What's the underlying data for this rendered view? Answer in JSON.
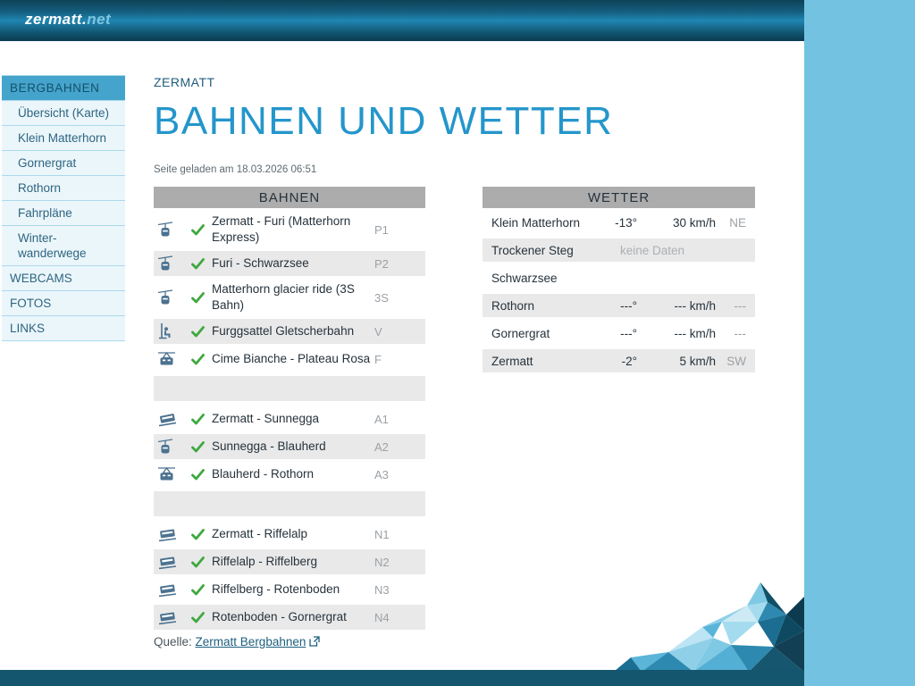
{
  "brand": {
    "logo_main": "zermatt.",
    "logo_suffix": "net"
  },
  "colors": {
    "accent_heading": "#2496cb",
    "header_gradient_top": "#0d4156",
    "header_gradient_mid": "#1f86b2",
    "header_gradient_bottom": "#0a3c50",
    "right_panel": "#74c2e1",
    "bottom_bar": "#14566e",
    "nav_active_bg": "#45a4cb",
    "nav_bg": "#ebf6fb",
    "nav_border": "#a9d9ec",
    "table_header_bg": "#acacac",
    "row_alt_gray": "#e9e9e9",
    "status_open_green": "#3ea83e",
    "lift_icon_color": "#4c7290",
    "muted_text": "#9ca1a6"
  },
  "sidebar": {
    "items": [
      {
        "label": "BERGBAHNEN",
        "slug": "bergbahnen",
        "active": true,
        "indent": false
      },
      {
        "label": "Übersicht (Karte)",
        "slug": "uebersicht-karte",
        "active": false,
        "indent": true
      },
      {
        "label": "Klein Matterhorn",
        "slug": "klein-matterhorn",
        "active": false,
        "indent": true
      },
      {
        "label": "Gornergrat",
        "slug": "gornergrat",
        "active": false,
        "indent": true
      },
      {
        "label": "Rothorn",
        "slug": "rothorn",
        "active": false,
        "indent": true
      },
      {
        "label": "Fahrpläne",
        "slug": "fahrplaene",
        "active": false,
        "indent": true
      },
      {
        "label": "Winter-wanderwege",
        "slug": "winter-wanderwege",
        "active": false,
        "indent": true
      },
      {
        "label": "WEBCAMS",
        "slug": "webcams",
        "active": false,
        "indent": false
      },
      {
        "label": "FOTOS",
        "slug": "fotos",
        "active": false,
        "indent": false
      },
      {
        "label": "LINKS",
        "slug": "links",
        "active": false,
        "indent": false
      }
    ]
  },
  "main": {
    "breadcrumb": "ZERMATT",
    "title": "BAHNEN UND WETTER",
    "loaded_note": "Seite geladen am 18.03.2026 06:51"
  },
  "bahnen": {
    "header": "BAHNEN",
    "rows": [
      {
        "type": "lift",
        "icon": "gondola-icon",
        "status": "open",
        "name": "Zermatt - Furi (Matterhorn Express)",
        "code": "P1"
      },
      {
        "type": "lift",
        "icon": "gondola-icon",
        "status": "open",
        "name": "Furi - Schwarzsee",
        "code": "P2"
      },
      {
        "type": "lift",
        "icon": "gondola-icon",
        "status": "open",
        "name": "Matterhorn glacier ride (3S Bahn)",
        "code": "3S"
      },
      {
        "type": "lift",
        "icon": "chairlift-icon",
        "status": "open",
        "name": "Furggsattel Gletscherbahn",
        "code": "V"
      },
      {
        "type": "lift",
        "icon": "cable-car-icon",
        "status": "open",
        "name": "Cime Bianche - Plateau Rosa",
        "code": "F"
      },
      {
        "type": "separator"
      },
      {
        "type": "lift",
        "icon": "funicular-icon",
        "status": "open",
        "name": "Zermatt - Sunnegga",
        "code": "A1"
      },
      {
        "type": "lift",
        "icon": "gondola-icon",
        "status": "open",
        "name": "Sunnegga - Blauherd",
        "code": "A2"
      },
      {
        "type": "lift",
        "icon": "cable-car-icon",
        "status": "open",
        "name": "Blauherd - Rothorn",
        "code": "A3"
      },
      {
        "type": "separator"
      },
      {
        "type": "lift",
        "icon": "train-icon",
        "status": "open",
        "name": "Zermatt - Riffelalp",
        "code": "N1"
      },
      {
        "type": "lift",
        "icon": "train-icon",
        "status": "open",
        "name": "Riffelalp - Riffelberg",
        "code": "N2"
      },
      {
        "type": "lift",
        "icon": "train-icon",
        "status": "open",
        "name": "Riffelberg - Rotenboden",
        "code": "N3"
      },
      {
        "type": "lift",
        "icon": "train-icon",
        "status": "open",
        "name": "Rotenboden - Gornergrat",
        "code": "N4"
      }
    ]
  },
  "wetter": {
    "header": "WETTER",
    "rows": [
      {
        "station": "Klein Matterhorn",
        "temp": "-13°",
        "wind": "30 km/h",
        "dir": "NE"
      },
      {
        "station": "Trockener Steg",
        "nodata": "keine Daten"
      },
      {
        "station": "Schwarzsee"
      },
      {
        "station": "Rothorn",
        "temp": "---°",
        "wind": "--- km/h",
        "dir": "---"
      },
      {
        "station": "Gornergrat",
        "temp": "---°",
        "wind": "--- km/h",
        "dir": "---"
      },
      {
        "station": "Zermatt",
        "temp": "-2°",
        "wind": "5 km/h",
        "dir": "SW"
      }
    ]
  },
  "footer": {
    "source_label": "Quelle:",
    "source_link": "Zermatt Bergbahnen"
  }
}
